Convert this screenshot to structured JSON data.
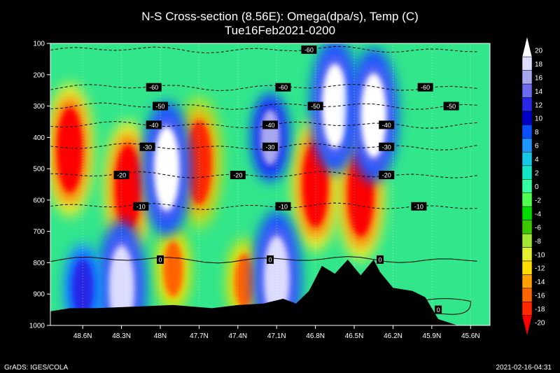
{
  "title": "N-S Cross-section (8.56E): Omega(dpa/s), Temp (C)",
  "subtitle": "Tue16Feb2021-0200",
  "footer_left": "GrADS: IGES/COLA",
  "footer_right": "2021-02-16-04:31",
  "chart_data": {
    "type": "heatmap",
    "title": "N-S Cross-section (8.56E): Omega(dpa/s), Temp (C)",
    "subtitle": "Tue16Feb2021-0200",
    "x_ticks": [
      "48.6N",
      "48.3N",
      "48N",
      "47.7N",
      "47.4N",
      "47.1N",
      "46.8N",
      "46.5N",
      "46.2N",
      "45.9N",
      "45.6N"
    ],
    "x_tick_values": [
      48.6,
      48.3,
      48.0,
      47.7,
      47.4,
      47.1,
      46.8,
      46.5,
      46.2,
      45.9,
      45.6
    ],
    "xlim": [
      48.85,
      45.45
    ],
    "y_ticks": [
      "100",
      "200",
      "300",
      "400",
      "500",
      "600",
      "700",
      "800",
      "900",
      "1000"
    ],
    "y_tick_values": [
      100,
      200,
      300,
      400,
      500,
      600,
      700,
      800,
      900,
      1000
    ],
    "ylim": [
      100,
      1000
    ],
    "colorbar": {
      "labels": [
        "20",
        "18",
        "16",
        "14",
        "12",
        "10",
        "8",
        "6",
        "4",
        "2",
        "0",
        "-2",
        "-4",
        "-6",
        "-8",
        "-10",
        "-12",
        "-14",
        "-16",
        "-18",
        "-20"
      ],
      "colors": [
        "#ffffff",
        "#dcdcff",
        "#a8a8f0",
        "#6c6cf0",
        "#2828e6",
        "#0000c8",
        "#0a50ff",
        "#1e96ff",
        "#14c8e6",
        "#14e6c8",
        "#32ffa0",
        "#50ff50",
        "#00dc00",
        "#3cc800",
        "#a0e632",
        "#e6f032",
        "#ffdc00",
        "#ffa000",
        "#ff6400",
        "#ff2800",
        "#ff0000"
      ]
    },
    "omega_features": [
      {
        "lat": 48.7,
        "p": 440,
        "value": -20
      },
      {
        "lat": 48.25,
        "p": 560,
        "value": -20
      },
      {
        "lat": 47.7,
        "p": 480,
        "value": -18
      },
      {
        "lat": 46.8,
        "p": 550,
        "value": -20
      },
      {
        "lat": 46.45,
        "p": 580,
        "value": -20
      },
      {
        "lat": 47.9,
        "p": 820,
        "value": -16
      },
      {
        "lat": 47.35,
        "p": 860,
        "value": -16
      },
      {
        "lat": 47.95,
        "p": 500,
        "value": 20
      },
      {
        "lat": 46.65,
        "p": 300,
        "value": 20
      },
      {
        "lat": 46.35,
        "p": 330,
        "value": 20
      },
      {
        "lat": 47.15,
        "p": 400,
        "value": 16
      },
      {
        "lat": 48.3,
        "p": 880,
        "value": 18
      },
      {
        "lat": 47.1,
        "p": 850,
        "value": 18
      },
      {
        "lat": 48.6,
        "p": 880,
        "value": 12
      }
    ],
    "temperature_contours": [
      {
        "label": "-60",
        "p": 120,
        "label_lat": 46.85
      },
      {
        "label": "-60",
        "p": 240,
        "label_lats": [
          48.05,
          47.05,
          45.95
        ]
      },
      {
        "label": "-50",
        "p": 300,
        "label_lats": [
          48.0,
          46.8,
          45.75
        ]
      },
      {
        "label": "-40",
        "p": 360,
        "label_lats": [
          48.05,
          47.15,
          46.25
        ]
      },
      {
        "label": "-30",
        "p": 430,
        "label_lats": [
          48.1,
          47.15,
          46.25
        ]
      },
      {
        "label": "-20",
        "p": 520,
        "label_lats": [
          48.3,
          47.4,
          46.25
        ]
      },
      {
        "label": "-10",
        "p": 620,
        "label_lats": [
          48.15,
          47.05,
          46.0
        ]
      },
      {
        "label": "0",
        "p": 790,
        "label_lats": [
          48.0,
          47.15,
          46.3
        ]
      },
      {
        "label": "0",
        "p": 950,
        "label_lat": 45.85
      }
    ],
    "terrain_p": [
      [
        48.85,
        955
      ],
      [
        48.7,
        945
      ],
      [
        48.5,
        945
      ],
      [
        48.2,
        940
      ],
      [
        47.9,
        935
      ],
      [
        47.6,
        945
      ],
      [
        47.4,
        935
      ],
      [
        47.2,
        930
      ],
      [
        47.05,
        915
      ],
      [
        46.95,
        930
      ],
      [
        46.85,
        890
      ],
      [
        46.75,
        810
      ],
      [
        46.65,
        835
      ],
      [
        46.55,
        790
      ],
      [
        46.45,
        840
      ],
      [
        46.35,
        790
      ],
      [
        46.3,
        830
      ],
      [
        46.2,
        880
      ],
      [
        46.05,
        890
      ],
      [
        45.95,
        910
      ],
      [
        45.85,
        980
      ],
      [
        45.7,
        1000
      ],
      [
        45.45,
        1005
      ]
    ]
  }
}
